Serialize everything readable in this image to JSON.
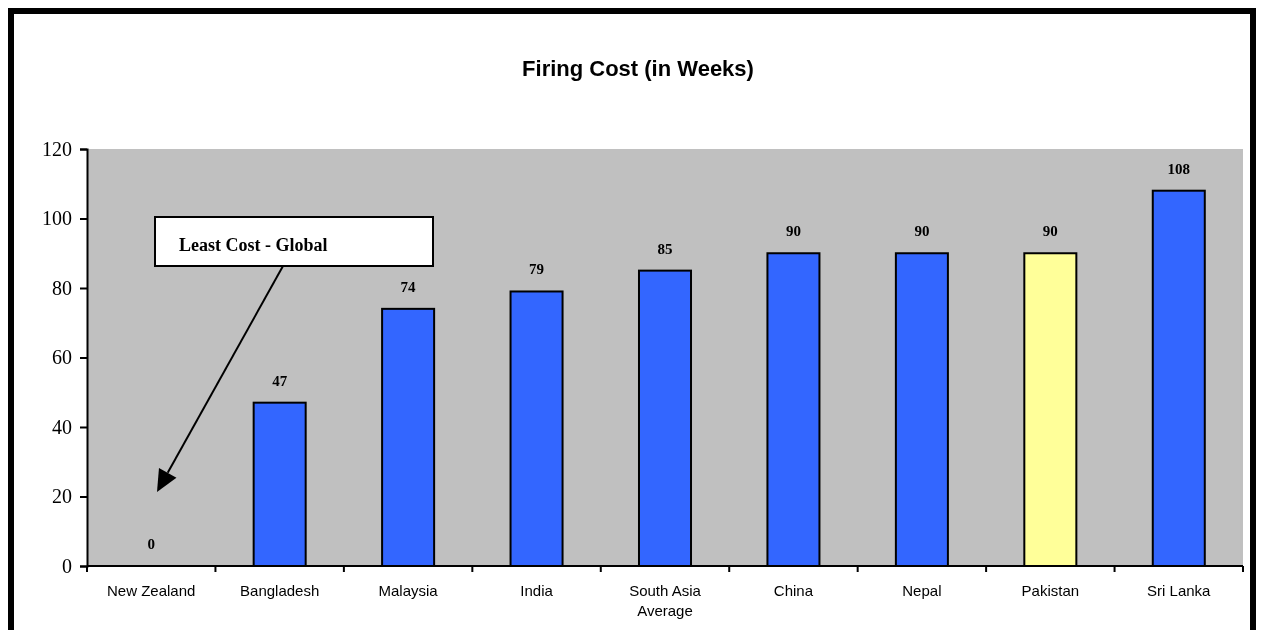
{
  "chart_data": {
    "type": "bar",
    "title": "Firing Cost (in Weeks)",
    "categories": [
      "New Zealand",
      "Bangladesh",
      "Malaysia",
      "India",
      "South Asia Average",
      "China",
      "Nepal",
      "Pakistan",
      "Sri Lanka"
    ],
    "values": [
      0,
      47,
      74,
      79,
      85,
      90,
      90,
      90,
      108
    ],
    "colors": [
      "#3366ff",
      "#3366ff",
      "#3366ff",
      "#3366ff",
      "#3366ff",
      "#3366ff",
      "#3366ff",
      "#ffff99",
      "#3366ff"
    ],
    "ylim": [
      0,
      120
    ],
    "yticks": [
      0,
      20,
      40,
      60,
      80,
      100,
      120
    ],
    "data_labels": true,
    "grid": false,
    "annotations": [
      "Least Cost - Global"
    ]
  }
}
